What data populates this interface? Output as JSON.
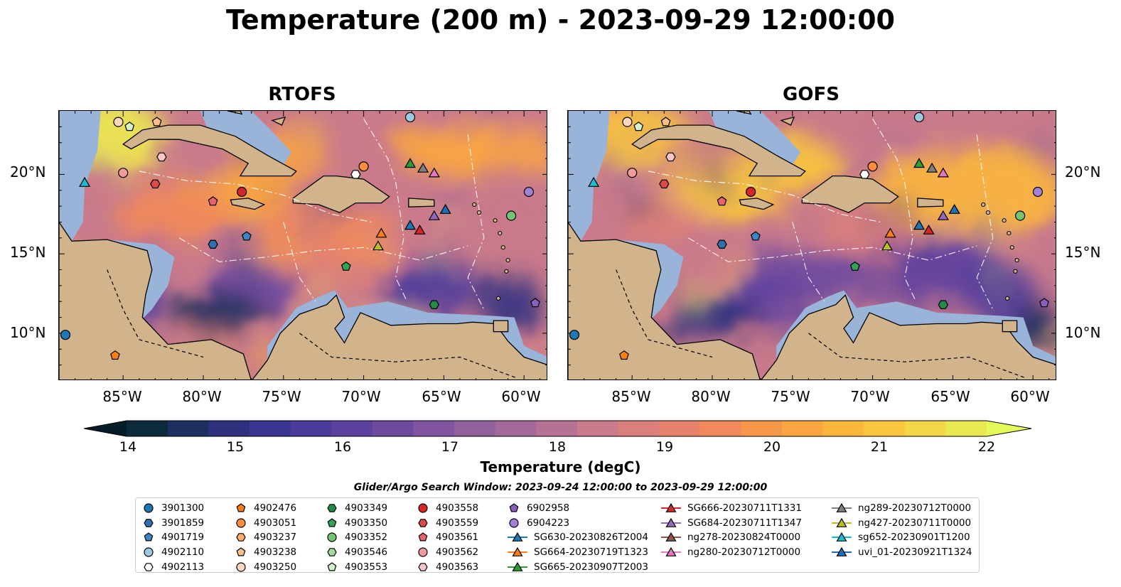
{
  "title": "Temperature (200 m) - 2023-09-29 12:00:00",
  "panels": [
    {
      "title": "RTOFS"
    },
    {
      "title": "GOFS"
    }
  ],
  "axes": {
    "lat_ticks": [
      "20°N",
      "15°N",
      "10°N"
    ],
    "lon_ticks": [
      "85°W",
      "80°W",
      "75°W",
      "70°W",
      "65°W",
      "60°W"
    ]
  },
  "colorbar": {
    "label": "Temperature (degC)",
    "ticks": [
      "14",
      "15",
      "16",
      "17",
      "18",
      "19",
      "20",
      "21",
      "22"
    ],
    "colors": [
      "#0b2a3c",
      "#1d2f5e",
      "#2e327e",
      "#3c3591",
      "#4c3b9b",
      "#5d419f",
      "#6e4a9f",
      "#80549f",
      "#92609d",
      "#a3699a",
      "#b67294",
      "#c97a8b",
      "#da7f7c",
      "#e8836b",
      "#f1895a",
      "#f7974a",
      "#fba640",
      "#fbb63c",
      "#f9c63d",
      "#f3d746",
      "#ebe952"
    ],
    "under_color": "#071c29",
    "over_color": "#e5f95a"
  },
  "search_window": "Glider/Argo Search Window: 2023-09-24 12:00:00 to 2023-09-29 12:00:00",
  "legend": [
    {
      "label": "3901300",
      "marker": "circle",
      "color": "#1f77b4"
    },
    {
      "label": "3901859",
      "marker": "hexagon",
      "color": "#2e6fae"
    },
    {
      "label": "4901719",
      "marker": "pentagon",
      "color": "#3d85c6"
    },
    {
      "label": "4902110",
      "marker": "circle",
      "color": "#9ecae1"
    },
    {
      "label": "4902113",
      "marker": "hexagon",
      "color": "#ffffff"
    },
    {
      "label": "4902476",
      "marker": "pentagon",
      "color": "#ff7f0e"
    },
    {
      "label": "4903051",
      "marker": "circle",
      "color": "#fd8d3c"
    },
    {
      "label": "4903237",
      "marker": "hexagon",
      "color": "#fdae6b"
    },
    {
      "label": "4903238",
      "marker": "pentagon",
      "color": "#fdbf8a"
    },
    {
      "label": "4903250",
      "marker": "circle",
      "color": "#fdd8bf"
    },
    {
      "label": "4903349",
      "marker": "hexagon",
      "color": "#238b45"
    },
    {
      "label": "4903350",
      "marker": "pentagon",
      "color": "#31a354"
    },
    {
      "label": "4903352",
      "marker": "circle",
      "color": "#74c476"
    },
    {
      "label": "4903546",
      "marker": "hexagon",
      "color": "#a1d99b"
    },
    {
      "label": "4903553",
      "marker": "pentagon",
      "color": "#d6f5c6"
    },
    {
      "label": "4903558",
      "marker": "circle",
      "color": "#d62728"
    },
    {
      "label": "4903559",
      "marker": "hexagon",
      "color": "#de4a4a"
    },
    {
      "label": "4903561",
      "marker": "pentagon",
      "color": "#e6646a"
    },
    {
      "label": "4903562",
      "marker": "circle",
      "color": "#f09a9a"
    },
    {
      "label": "4903563",
      "marker": "hexagon",
      "color": "#f8c6c6"
    },
    {
      "label": "6902958",
      "marker": "pentagon",
      "color": "#8c5fbf"
    },
    {
      "label": "6904223",
      "marker": "circle",
      "color": "#a57fd4"
    },
    {
      "label": "SG630-20230826T2004",
      "marker": "triangle",
      "color": "#1f77b4"
    },
    {
      "label": "SG664-20230719T1323",
      "marker": "triangle",
      "color": "#ff7f0e"
    },
    {
      "label": "SG665-20230907T2003",
      "marker": "triangle",
      "color": "#2ca02c"
    },
    {
      "label": "SG666-20230711T1331",
      "marker": "triangle",
      "color": "#d62728"
    },
    {
      "label": "SG684-20230711T1347",
      "marker": "triangle",
      "color": "#9467bd"
    },
    {
      "label": "ng278-20230824T0000",
      "marker": "triangle",
      "color": "#8c564b"
    },
    {
      "label": "ng280-20230712T0000",
      "marker": "triangle",
      "color": "#e377c2"
    },
    {
      "label": "ng289-20230712T0000",
      "marker": "triangle",
      "color": "#7f7f7f"
    },
    {
      "label": "ng427-20230711T0000",
      "marker": "triangle",
      "color": "#bcbd22"
    },
    {
      "label": "sg652-20230901T1200",
      "marker": "triangle",
      "color": "#17becf"
    },
    {
      "label": "uvi_01-20230921T1324",
      "marker": "triangle",
      "color": "#1f6fb4"
    }
  ],
  "chart_data": {
    "type": "heatmap",
    "title": "Temperature (200 m) - 2023-09-29 12:00:00",
    "subplots": [
      "RTOFS",
      "GOFS"
    ],
    "variable": "Temperature (degC)",
    "depth_m": 200,
    "colorbar_range": [
      14,
      22
    ],
    "colorbar_extend": "both",
    "xlim": [
      -89,
      -58.5
    ],
    "ylim": [
      7,
      24
    ],
    "x_ticks": [
      -85,
      -80,
      -75,
      -70,
      -65,
      -60
    ],
    "y_ticks": [
      10,
      15,
      20
    ],
    "observations": [
      {
        "id": "3901300",
        "lon": -88.6,
        "lat": 9.9
      },
      {
        "id": "4902476",
        "lon": -85.5,
        "lat": 8.6
      },
      {
        "id": "4903250",
        "lon": -85.3,
        "lat": 23.3
      },
      {
        "id": "4903553",
        "lon": -84.6,
        "lat": 23.0
      },
      {
        "id": "4903238",
        "lon": -82.9,
        "lat": 23.3
      },
      {
        "id": "4903563",
        "lon": -82.6,
        "lat": 21.1
      },
      {
        "id": "4903562",
        "lon": -85.0,
        "lat": 20.1
      },
      {
        "id": "4903559",
        "lon": -83.0,
        "lat": 19.4
      },
      {
        "id": "4903561",
        "lon": -79.4,
        "lat": 18.3
      },
      {
        "id": "4903558",
        "lon": -77.6,
        "lat": 18.9
      },
      {
        "id": "3901859",
        "lon": -79.4,
        "lat": 15.6
      },
      {
        "id": "4901719",
        "lon": -77.3,
        "lat": 16.1
      },
      {
        "id": "4903051",
        "lon": -70.0,
        "lat": 20.5
      },
      {
        "id": "4902113",
        "lon": -70.5,
        "lat": 20.0
      },
      {
        "id": "4902110",
        "lon": -67.1,
        "lat": 23.6
      },
      {
        "id": "4903350",
        "lon": -71.1,
        "lat": 14.2
      },
      {
        "id": "4903349",
        "lon": -65.6,
        "lat": 11.8
      },
      {
        "id": "4903352",
        "lon": -60.8,
        "lat": 17.4
      },
      {
        "id": "6904223",
        "lon": -59.7,
        "lat": 18.9
      },
      {
        "id": "6902958",
        "lon": -59.3,
        "lat": 11.9
      },
      {
        "id": "sg652-20230901T1200",
        "lon": -87.4,
        "lat": 19.5
      },
      {
        "id": "SG665-20230907T2003",
        "lon": -67.1,
        "lat": 20.7
      },
      {
        "id": "ng289-20230712T0000",
        "lon": -66.3,
        "lat": 20.4
      },
      {
        "id": "ng280-20230712T0000",
        "lon": -65.6,
        "lat": 20.1
      },
      {
        "id": "uvi_01-20230921T1324",
        "lon": -64.9,
        "lat": 17.8
      },
      {
        "id": "SG684-20230711T1347",
        "lon": -65.6,
        "lat": 17.4
      },
      {
        "id": "SG630-20230826T2004",
        "lon": -67.1,
        "lat": 16.8
      },
      {
        "id": "SG666-20230711T1331",
        "lon": -66.5,
        "lat": 16.5
      },
      {
        "id": "SG664-20230719T1323",
        "lon": -68.9,
        "lat": 16.3
      },
      {
        "id": "ng427-20230711T0000",
        "lon": -69.1,
        "lat": 15.5
      }
    ]
  }
}
